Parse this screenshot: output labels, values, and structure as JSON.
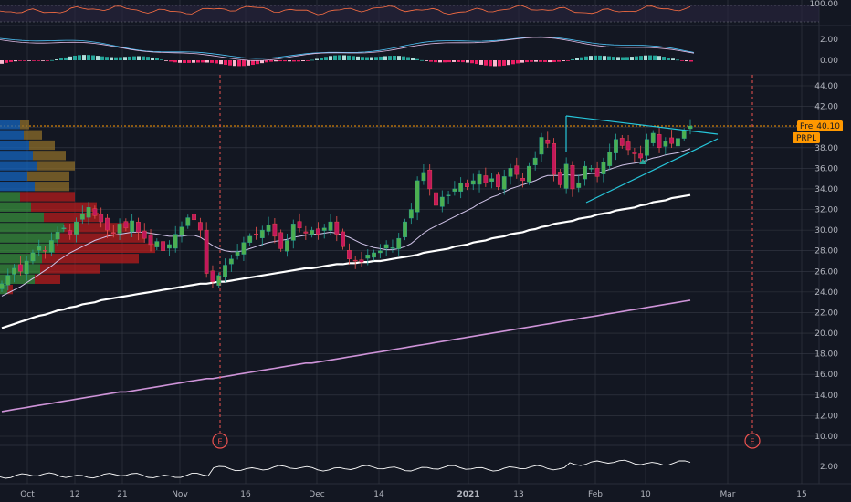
{
  "chart_data": {
    "type": "candlestick",
    "ticker": "PRPL",
    "pre_label": "Pre",
    "pre_price": "40.10",
    "earnings_marker": "E",
    "colors": {
      "background": "#131722",
      "grid": "#363a45",
      "up": "#26a69a",
      "up_body": "#4caf50",
      "down": "#ef5350",
      "down_body": "#c2185b",
      "sma_short": "#d1c4e9",
      "sma_mid": "#ffffff",
      "sma_long": "#ce93d8",
      "triangle": "#26c6da",
      "price_line": "#ff9800",
      "tag_bg": "#ff9800",
      "rsi_line": "#ff7043",
      "macd_line": "#4fc3f7",
      "macd_signal": "#e1bee7",
      "vp_up": "#388e3c",
      "vp_down": "#b71c1c",
      "vp_up_upper": "#1565c0",
      "vp_down_upper": "#8d6e2a"
    },
    "x_ticks": [
      "Oct",
      "12",
      "21",
      "Nov",
      "16",
      "Dec",
      "14",
      "2021",
      "13",
      "Feb",
      "10",
      "Mar",
      "15"
    ],
    "price_axis": {
      "min": 10,
      "max": 44,
      "ticks": [
        "44.00",
        "42.00",
        "40.00",
        "38.00",
        "36.00",
        "34.00",
        "32.00",
        "30.00",
        "28.00",
        "26.00",
        "24.00",
        "22.00",
        "20.00",
        "18.00",
        "16.00",
        "14.00",
        "12.00",
        "10.00"
      ]
    },
    "rsi_axis": {
      "ticks": [
        "100.00"
      ]
    },
    "macd_axis": {
      "ticks": [
        "2.00",
        "0.00"
      ]
    },
    "volume_axis": {
      "ticks": [
        "2.00"
      ]
    },
    "candles_close": [
      24.8,
      25.6,
      26.3,
      26.0,
      27.0,
      27.8,
      28.4,
      28.0,
      29.0,
      29.8,
      30.2,
      29.6,
      30.8,
      31.6,
      32.2,
      31.4,
      30.8,
      30.0,
      29.7,
      30.6,
      30.2,
      30.9,
      29.8,
      29.2,
      28.6,
      28.9,
      28.0,
      28.6,
      29.6,
      30.3,
      31.2,
      31.0,
      30.0,
      25.8,
      25.0,
      25.6,
      26.6,
      27.2,
      27.9,
      28.8,
      29.4,
      29.6,
      30.0,
      30.5,
      29.4,
      28.2,
      29.0,
      30.6,
      30.2,
      29.7,
      30.0,
      29.6,
      30.2,
      30.8,
      29.6,
      28.4,
      27.2,
      27.0,
      26.9,
      27.6,
      27.8,
      28.0,
      28.6,
      28.3,
      29.2,
      30.8,
      32.0,
      34.8,
      35.6,
      34.0,
      32.4,
      33.2,
      33.4,
      34.0,
      34.6,
      34.2,
      34.8,
      35.4,
      34.6,
      35.0,
      34.2,
      35.2,
      36.0,
      35.4,
      34.8,
      36.2,
      37.0,
      39.0,
      38.4,
      35.4,
      34.4,
      36.4,
      34.0,
      34.6,
      36.2,
      36.0,
      35.2,
      36.6,
      37.6,
      38.8,
      38.2,
      37.8,
      37.4,
      37.0,
      38.8,
      39.4,
      38.0,
      38.6,
      38.4,
      38.9,
      39.6,
      40.1
    ],
    "sma20": [
      23.6,
      23.9,
      24.2,
      24.5,
      24.9,
      25.3,
      25.7,
      26.1,
      26.5,
      27.0,
      27.4,
      27.8,
      28.1,
      28.4,
      28.7,
      29.0,
      29.2,
      29.4,
      29.5,
      29.6,
      29.7,
      29.8,
      29.8,
      29.8,
      29.7,
      29.6,
      29.5,
      29.4,
      29.4,
      29.4,
      29.5,
      29.5,
      29.3,
      28.9,
      28.5,
      28.2,
      28.0,
      27.9,
      27.9,
      28.0,
      28.2,
      28.4,
      28.6,
      28.8,
      28.9,
      29.0,
      29.1,
      29.3,
      29.4,
      29.5,
      29.6,
      29.6,
      29.7,
      29.8,
      29.7,
      29.5,
      29.3,
      29.0,
      28.7,
      28.5,
      28.3,
      28.2,
      28.1,
      28.1,
      28.2,
      28.4,
      28.7,
      29.2,
      29.7,
      30.1,
      30.4,
      30.7,
      31.0,
      31.3,
      31.6,
      31.9,
      32.2,
      32.6,
      32.9,
      33.2,
      33.4,
      33.7,
      34.0,
      34.2,
      34.4,
      34.6,
      34.8,
      35.1,
      35.3,
      35.3,
      35.3,
      35.4,
      35.3,
      35.3,
      35.4,
      35.5,
      35.5,
      35.7,
      35.9,
      36.1,
      36.3,
      36.4,
      36.5,
      36.6,
      36.8,
      37.0,
      37.1,
      37.3,
      37.4,
      37.5,
      37.7,
      37.9
    ],
    "sma50": [
      20.5,
      20.7,
      20.9,
      21.1,
      21.3,
      21.5,
      21.7,
      21.8,
      22.0,
      22.2,
      22.3,
      22.5,
      22.6,
      22.8,
      22.9,
      23.0,
      23.2,
      23.3,
      23.4,
      23.5,
      23.6,
      23.7,
      23.8,
      23.9,
      24.0,
      24.1,
      24.2,
      24.3,
      24.4,
      24.5,
      24.6,
      24.7,
      24.8,
      24.8,
      24.9,
      25.0,
      25.0,
      25.1,
      25.2,
      25.3,
      25.4,
      25.5,
      25.6,
      25.7,
      25.8,
      25.9,
      26.0,
      26.1,
      26.2,
      26.3,
      26.3,
      26.4,
      26.5,
      26.6,
      26.7,
      26.7,
      26.8,
      26.8,
      26.9,
      26.9,
      27.0,
      27.0,
      27.1,
      27.2,
      27.3,
      27.4,
      27.5,
      27.6,
      27.8,
      27.9,
      28.0,
      28.1,
      28.2,
      28.4,
      28.5,
      28.6,
      28.8,
      28.9,
      29.0,
      29.2,
      29.3,
      29.4,
      29.6,
      29.7,
      29.8,
      30.0,
      30.1,
      30.3,
      30.4,
      30.6,
      30.7,
      30.8,
      30.9,
      31.1,
      31.2,
      31.3,
      31.5,
      31.6,
      31.7,
      31.9,
      32.0,
      32.1,
      32.2,
      32.4,
      32.5,
      32.7,
      32.8,
      32.9,
      33.1,
      33.2,
      33.3,
      33.4
    ],
    "sma200": [
      12.4,
      12.5,
      12.6,
      12.7,
      12.8,
      12.9,
      13.0,
      13.1,
      13.2,
      13.3,
      13.4,
      13.5,
      13.6,
      13.7,
      13.8,
      13.9,
      14.0,
      14.1,
      14.2,
      14.3,
      14.3,
      14.4,
      14.5,
      14.6,
      14.7,
      14.8,
      14.9,
      15.0,
      15.1,
      15.2,
      15.3,
      15.4,
      15.5,
      15.6,
      15.6,
      15.7,
      15.8,
      15.9,
      16.0,
      16.1,
      16.2,
      16.3,
      16.4,
      16.5,
      16.6,
      16.7,
      16.8,
      16.9,
      17.0,
      17.1,
      17.1,
      17.2,
      17.3,
      17.4,
      17.5,
      17.6,
      17.7,
      17.8,
      17.9,
      18.0,
      18.1,
      18.2,
      18.3,
      18.4,
      18.5,
      18.6,
      18.7,
      18.8,
      18.9,
      19.0,
      19.1,
      19.2,
      19.3,
      19.4,
      19.5,
      19.6,
      19.7,
      19.8,
      19.9,
      20.0,
      20.1,
      20.2,
      20.3,
      20.4,
      20.5,
      20.6,
      20.7,
      20.8,
      20.9,
      21.0,
      21.1,
      21.2,
      21.3,
      21.4,
      21.5,
      21.6,
      21.7,
      21.8,
      21.9,
      22.0,
      22.1,
      22.2,
      22.3,
      22.4,
      22.5,
      22.6,
      22.7,
      22.8,
      22.9,
      23.0,
      23.1,
      23.2
    ]
  }
}
